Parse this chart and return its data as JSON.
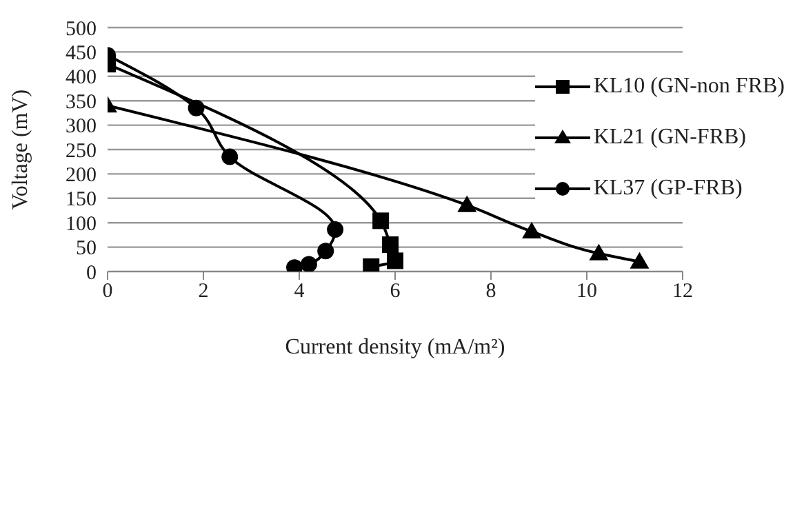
{
  "chart_data": {
    "type": "line",
    "xlabel": "Current density (mA/m²)",
    "ylabel": "Voltage (mV)",
    "xlim": [
      0,
      12
    ],
    "xticks": [
      0,
      2,
      4,
      6,
      8,
      10,
      12
    ],
    "ylim": [
      0,
      500
    ],
    "yticks": [
      0,
      50,
      100,
      150,
      200,
      250,
      300,
      350,
      400,
      450,
      500
    ],
    "grid": "y",
    "legend": "top right",
    "series": [
      {
        "name": "KL10 (GN-non FRB)",
        "color": "#000000",
        "marker": "square",
        "x": [
          0,
          5.7,
          5.9,
          6.0,
          5.5
        ],
        "values": [
          425,
          104,
          55,
          22,
          10
        ]
      },
      {
        "name": "KL21 (GN-FRB)",
        "color": "#000000",
        "marker": "triangle",
        "x": [
          0,
          7.5,
          8.85,
          10.25,
          11.1
        ],
        "values": [
          340,
          136,
          82,
          37,
          20
        ]
      },
      {
        "name": "KL37 (GP-FRB)",
        "color": "#000000",
        "marker": "circle",
        "x": [
          0,
          1.85,
          2.55,
          4.75,
          4.55,
          4.2,
          3.9
        ],
        "values": [
          443,
          335,
          235,
          86,
          42,
          15,
          8
        ]
      }
    ]
  }
}
